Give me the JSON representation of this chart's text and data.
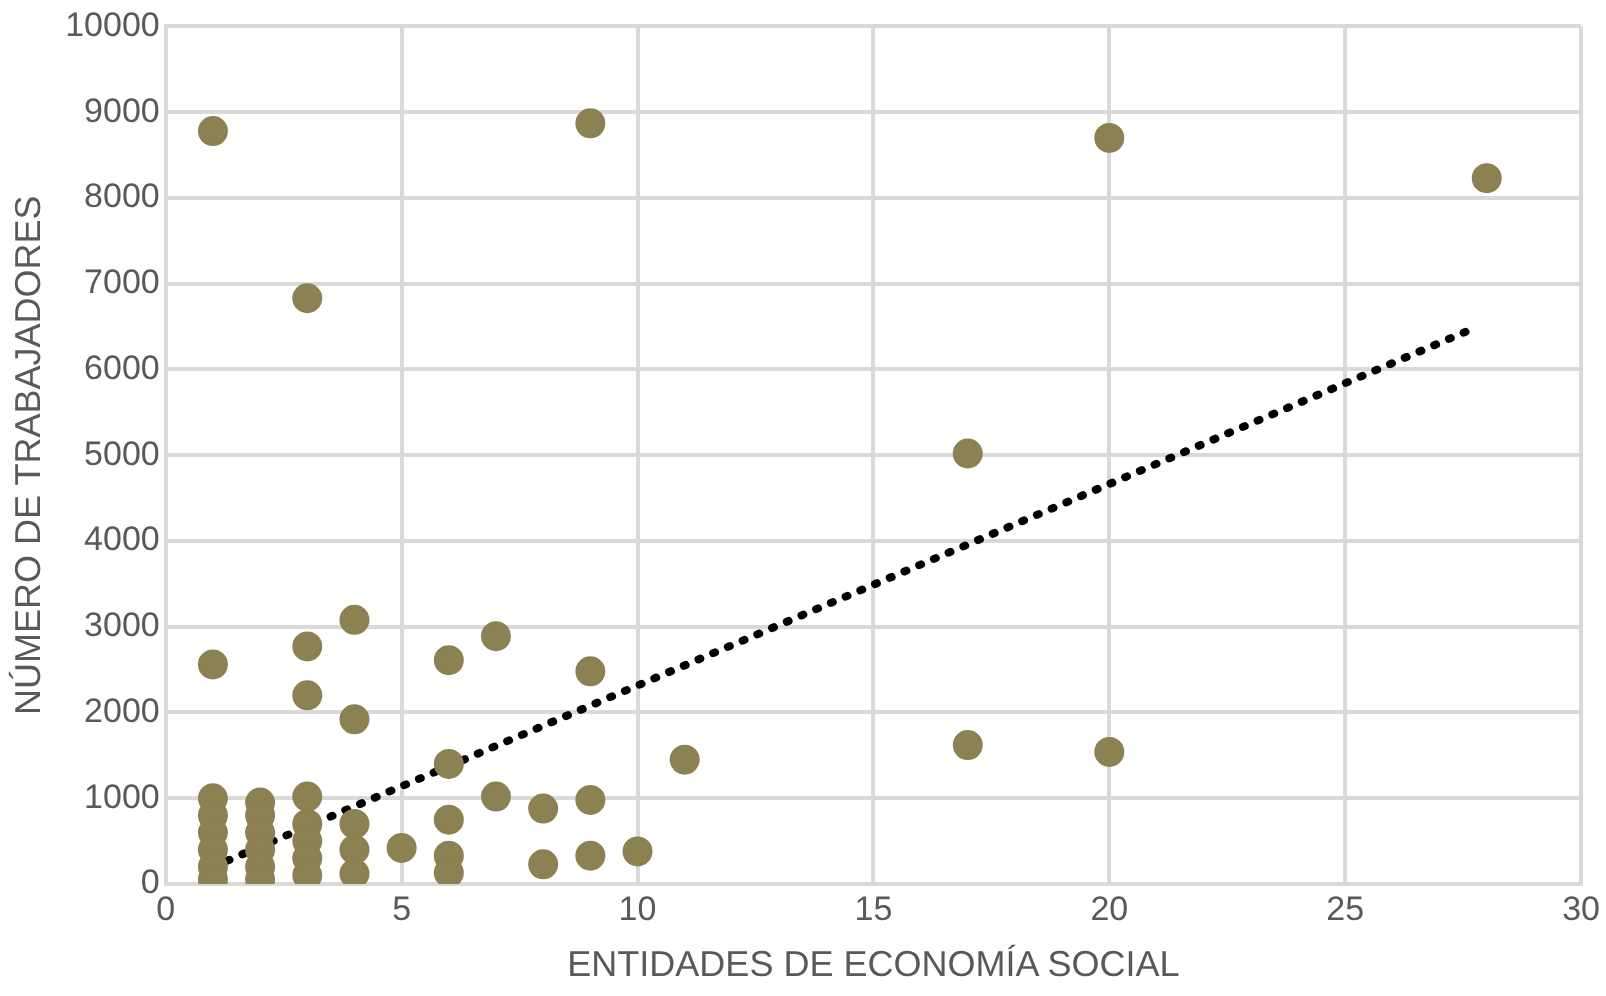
{
  "chart_data": {
    "type": "scatter",
    "xlabel": "ENTIDADES DE ECONOMÍA SOCIAL",
    "ylabel": "NÚMERO DE TRABAJADORES",
    "xlim": [
      0,
      30
    ],
    "xticks": [
      0,
      5,
      10,
      15,
      20,
      25,
      30
    ],
    "ylim": [
      0,
      10000
    ],
    "yticks": [
      0,
      1000,
      2000,
      3000,
      4000,
      5000,
      6000,
      7000,
      8000,
      9000,
      10000
    ],
    "grid": true,
    "legend": false,
    "marker": "circle",
    "series": [
      {
        "color": "#8c8152",
        "x": [
          1,
          9,
          20,
          28,
          3,
          17,
          1,
          3,
          3,
          4,
          4,
          6,
          7,
          9,
          11,
          6,
          17,
          20,
          1,
          1,
          1,
          1,
          1,
          1,
          2,
          2,
          2,
          2,
          2,
          2,
          3,
          3,
          3,
          3,
          3,
          4,
          4,
          4,
          5,
          6,
          6,
          6,
          7,
          8,
          8,
          9,
          9,
          10
        ],
        "values": [
          8780,
          8870,
          8700,
          8230,
          6830,
          5020,
          2560,
          2770,
          2200,
          3080,
          1920,
          2610,
          2890,
          2480,
          1450,
          1400,
          1620,
          1540,
          1000,
          800,
          600,
          400,
          200,
          50,
          950,
          800,
          600,
          400,
          200,
          50,
          1020,
          700,
          500,
          300,
          100,
          700,
          400,
          120,
          420,
          750,
          330,
          130,
          1020,
          880,
          230,
          980,
          330,
          380
        ]
      },
      {
        "type": "line",
        "color": "#000000",
        "line_style": "dotted",
        "marker": "none",
        "x": [
          1,
          27.6
        ],
        "values": [
          200,
          6450
        ]
      }
    ]
  }
}
